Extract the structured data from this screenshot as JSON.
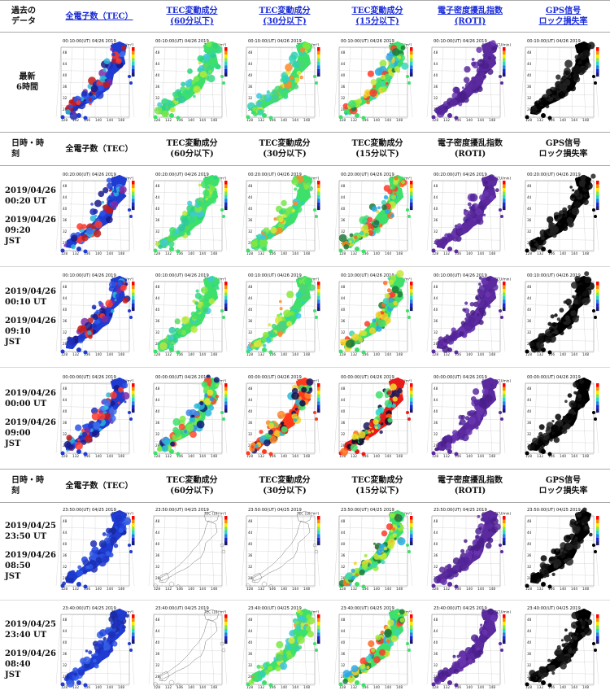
{
  "header_top": {
    "label": "過去の\nデータ",
    "columns": [
      "全電子数（TEC）",
      "TEC変動成分\n(60分以下)",
      "TEC変動成分\n(30分以下)",
      "TEC変動成分\n(15分以下)",
      "電子密度擾乱指数\n(ROTI)",
      "GPS信号\nロック損失率"
    ]
  },
  "header_sub": {
    "label": "日時・時\n刻",
    "columns": [
      "全電子数（TEC）",
      "TEC変動成分\n(60分以下)",
      "TEC変動成分\n(30分以下)",
      "TEC変動成分\n(15分以下)",
      "電子密度擾乱指数\n(ROTI)",
      "GPS信号\nロック損失率"
    ]
  },
  "colorbar_labels": [
    "TEC (10¹⁶m²)",
    "TEC (10¹⁶m²)",
    "TEC (10¹⁶m²)",
    "TEC (10¹⁶m²)",
    "ROTI\n(TECU/min)",
    "LOL (%)"
  ],
  "lat_ticks": [
    "48",
    "44",
    "40",
    "36",
    "32",
    "28"
  ],
  "lon_ticks": [
    "128",
    "132",
    "136",
    "140",
    "144",
    "148"
  ],
  "rows": [
    {
      "title": "最新\n6時間",
      "time": "00:10:00(UT)  04/26 2019",
      "styles": [
        "tec",
        "dtec60",
        "dtec30",
        "dtec15",
        "roti",
        "lol"
      ]
    },
    {
      "ut": "2019/04/26\n00:20 UT",
      "jst": "2019/04/26\n09:20\nJST",
      "time": "00:20:00(UT)  04/26 2019",
      "styles": [
        "tec",
        "dtec60",
        "dtec30",
        "dtec15",
        "roti",
        "lol"
      ]
    },
    {
      "ut": "2019/04/26\n00:10 UT",
      "jst": "2019/04/26\n09:10\nJST",
      "time": "00:10:00(UT)  04/26 2019",
      "styles": [
        "tec",
        "dtec60",
        "dtec30",
        "dtec15",
        "roti",
        "lol"
      ]
    },
    {
      "ut": "2019/04/26\n00:00 UT",
      "jst": "2019/04/26\n09:00\nJST",
      "time": "00:00:00(UT)  04/26 2019",
      "styles": [
        "tec",
        "dtec60b",
        "dtec30b",
        "dtec15b",
        "roti",
        "lol"
      ]
    },
    {
      "ut": "2019/04/25\n23:50 UT",
      "jst": "2019/04/26\n08:50\nJST",
      "time": "23:50:00(UT)  04/25 2019",
      "styles": [
        "tec2",
        "blank",
        "outline",
        "dtec15",
        "roti",
        "lol"
      ]
    },
    {
      "ut": "2019/04/25\n23:40 UT",
      "jst": "2019/04/26\n08:40\nJST",
      "time": "23:40:00(UT)  04/25 2019",
      "styles": [
        "tec2",
        "outline",
        "dtec30",
        "dtec15",
        "roti",
        "lol"
      ]
    }
  ]
}
